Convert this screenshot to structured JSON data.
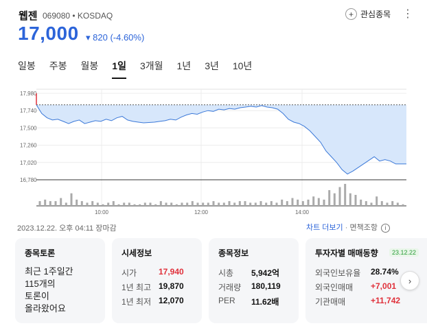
{
  "header": {
    "name": "웹젠",
    "code": "069080",
    "market": "KOSDAQ",
    "favorite_label": "관심종목",
    "price": "17,000",
    "change": "▾ 820 (-4.60%)"
  },
  "tabs": [
    "일봉",
    "주봉",
    "월봉",
    "1일",
    "3개월",
    "1년",
    "3년",
    "10년"
  ],
  "active_tab": "1일",
  "chart_data": {
    "type": "area",
    "y_ticks": [
      "17,980",
      "17,740",
      "17,500",
      "17,260",
      "17,020",
      "16,780"
    ],
    "x_ticks": [
      "10:00",
      "12:00",
      "14:00"
    ],
    "ylim": [
      16780,
      17980
    ],
    "prev_close": 17820,
    "price_series": [
      17820,
      17700,
      17640,
      17610,
      17620,
      17590,
      17560,
      17590,
      17610,
      17560,
      17580,
      17600,
      17590,
      17620,
      17600,
      17640,
      17660,
      17610,
      17590,
      17580,
      17570,
      17575,
      17580,
      17590,
      17600,
      17620,
      17610,
      17650,
      17680,
      17700,
      17690,
      17720,
      17740,
      17730,
      17760,
      17750,
      17770,
      17760,
      17780,
      17790,
      17800,
      17790,
      17810,
      17790,
      17780,
      17760,
      17700,
      17620,
      17580,
      17560,
      17520,
      17460,
      17380,
      17300,
      17180,
      17100,
      17020,
      16920,
      16860,
      16900,
      16950,
      17000,
      17050,
      17100,
      17040,
      17060,
      17040,
      17000,
      17000,
      17000
    ],
    "volume_series": [
      3,
      4,
      3,
      3,
      5,
      2,
      8,
      4,
      3,
      2,
      3,
      2,
      1,
      2,
      3,
      1,
      2,
      2,
      1,
      1,
      2,
      2,
      1,
      3,
      2,
      2,
      1,
      2,
      2,
      3,
      2,
      2,
      2,
      3,
      2,
      2,
      3,
      2,
      3,
      3,
      2,
      2,
      3,
      2,
      3,
      2,
      4,
      3,
      5,
      4,
      3,
      4,
      6,
      5,
      4,
      10,
      8,
      12,
      14,
      8,
      7,
      4,
      3,
      2,
      6,
      3,
      2,
      3,
      2,
      1
    ]
  },
  "timestamp": "2023.12.22. 오후 04:11 장마감",
  "chart_more": "차트 더보기",
  "source": "면책조항",
  "cards": {
    "forum": {
      "title": "종목토론",
      "body": [
        "최근 1주일간",
        "115개의",
        "토론이",
        "올라왔어요"
      ]
    },
    "quote": {
      "title": "시세정보",
      "rows": [
        {
          "k": "시가",
          "v": "17,940",
          "color": "#e0303a"
        },
        {
          "k": "1년 최고",
          "v": "19,870",
          "color": "#111"
        },
        {
          "k": "1년 최저",
          "v": "12,070",
          "color": "#111"
        }
      ]
    },
    "stock": {
      "title": "종목정보",
      "rows": [
        {
          "k": "시총",
          "v": "5,942억"
        },
        {
          "k": "거래량",
          "v": "180,119"
        },
        {
          "k": "PER",
          "v": "11.62배"
        }
      ]
    },
    "investor": {
      "title": "투자자별 매매동향",
      "date": "23.12.22",
      "rows": [
        {
          "k": "외국인보유율",
          "v": "28.74%",
          "color": "#111"
        },
        {
          "k": "외국인매매",
          "v": "+7,001",
          "color": "#e0303a"
        },
        {
          "k": "기관매매",
          "v": "+11,742",
          "color": "#e0303a"
        }
      ]
    }
  }
}
